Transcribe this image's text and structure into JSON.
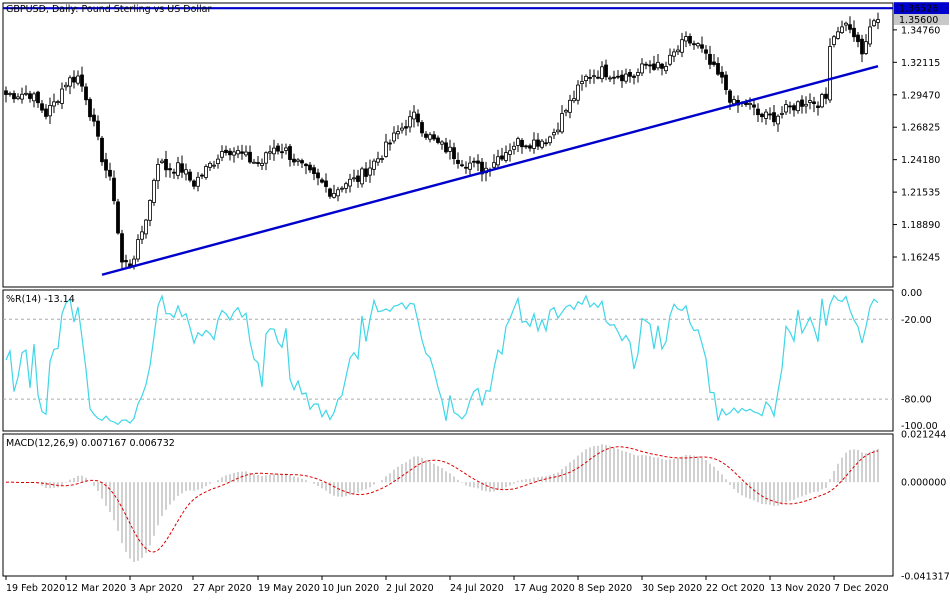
{
  "chart_data": [
    {
      "type": "candlestick",
      "title": "GBPUSD, Daily:  Pound Sterling vs US Dollar",
      "ylim": [
        1.138,
        1.3695
      ],
      "y_ticks": [
        "1.34760",
        "1.32115",
        "1.29470",
        "1.26825",
        "1.24180",
        "1.21535",
        "1.18890",
        "1.16245"
      ],
      "last_price_label": "1.35600",
      "horizontal_line_label": "1.36526",
      "horizontal_line_value": 1.36526,
      "trendline": {
        "from": {
          "date": "2020-03-20",
          "value": 1.148
        },
        "to": {
          "date": "2020-12-18",
          "value": 1.318
        }
      },
      "colors": {
        "up": "#ffffff",
        "down": "#000000",
        "line": "#0000cc",
        "price_box": "#0000cc"
      },
      "grid": false
    },
    {
      "type": "line",
      "title": "%R(14) -13.14",
      "ylim": [
        -104,
        2
      ],
      "y_ticks": [
        "0.00",
        "-20.00",
        "-80.00",
        "-100.00"
      ],
      "levels": [
        -20,
        -80
      ],
      "colors": {
        "line": "#3fd6e8",
        "level": "#aaaaaa"
      }
    },
    {
      "type": "bar",
      "title": "MACD(12,26,9) 0.007167 0.006732",
      "ylim": [
        -0.0413,
        0.0212
      ],
      "y_ticks": [
        "0.021244",
        "0.000000",
        "-0.041317"
      ],
      "colors": {
        "histogram": "#bdbdbd",
        "signal": "#dd0000"
      }
    }
  ],
  "x_axis": {
    "ticks": [
      "19 Feb 2020",
      "12 Mar 2020",
      "3 Apr 2020",
      "27 Apr 2020",
      "19 May 2020",
      "10 Jun 2020",
      "2 Jul 2020",
      "24 Jul 2020",
      "17 Aug 2020",
      "8 Sep 2020",
      "30 Sep 2020",
      "22 Oct 2020",
      "13 Nov 2020",
      "7 Dec 2020"
    ]
  }
}
